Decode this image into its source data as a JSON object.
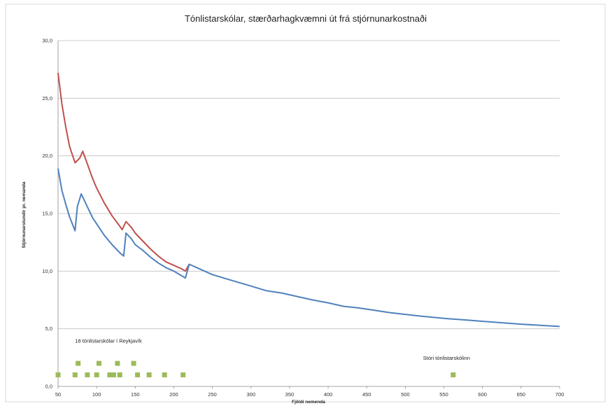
{
  "chart_data": {
    "type": "line",
    "title": "Tónlistarskólar, stærðarhagkvæmni út frá stjórnunarkostnaði",
    "xlabel": "Fjöldi nemenda",
    "ylabel": "Stjórnunarstundir pr. nemanda",
    "xlim": [
      50,
      700
    ],
    "ylim": [
      0,
      30
    ],
    "x_ticks": [
      "50",
      "100",
      "150",
      "200",
      "250",
      "300",
      "350",
      "400",
      "450",
      "500",
      "550",
      "600",
      "650",
      "700"
    ],
    "y_ticks": [
      "0,0",
      "5,0",
      "10,0",
      "15,0",
      "20,0",
      "25,0",
      "30,0"
    ],
    "grid": "horizontal",
    "series": [
      {
        "color": "#c0504d",
        "points": [
          [
            50,
            27.2
          ],
          [
            55,
            24.5
          ],
          [
            60,
            22.5
          ],
          [
            65,
            20.8
          ],
          [
            72,
            19.4
          ],
          [
            78,
            19.8
          ],
          [
            82,
            20.4
          ],
          [
            88,
            19.3
          ],
          [
            95,
            18.0
          ],
          [
            100,
            17.2
          ],
          [
            110,
            15.9
          ],
          [
            120,
            14.8
          ],
          [
            130,
            13.9
          ],
          [
            133,
            13.6
          ],
          [
            138,
            14.3
          ],
          [
            145,
            13.8
          ],
          [
            150,
            13.3
          ],
          [
            160,
            12.6
          ],
          [
            170,
            11.9
          ],
          [
            180,
            11.3
          ],
          [
            190,
            10.8
          ],
          [
            200,
            10.5
          ],
          [
            210,
            10.2
          ],
          [
            215,
            10.0
          ],
          [
            220,
            10.6
          ]
        ]
      },
      {
        "color": "#4f81bd",
        "points": [
          [
            50,
            18.9
          ],
          [
            55,
            17.0
          ],
          [
            60,
            15.8
          ],
          [
            65,
            14.7
          ],
          [
            72,
            13.5
          ],
          [
            75,
            15.6
          ],
          [
            80,
            16.7
          ],
          [
            85,
            16.0
          ],
          [
            90,
            15.3
          ],
          [
            95,
            14.6
          ],
          [
            100,
            14.1
          ],
          [
            110,
            13.1
          ],
          [
            120,
            12.3
          ],
          [
            130,
            11.6
          ],
          [
            135,
            11.3
          ],
          [
            138,
            13.3
          ],
          [
            145,
            12.8
          ],
          [
            150,
            12.3
          ],
          [
            160,
            11.8
          ],
          [
            170,
            11.2
          ],
          [
            180,
            10.7
          ],
          [
            190,
            10.3
          ],
          [
            200,
            10.0
          ],
          [
            210,
            9.6
          ],
          [
            215,
            9.4
          ],
          [
            220,
            10.6
          ],
          [
            230,
            10.3
          ],
          [
            250,
            9.7
          ],
          [
            270,
            9.3
          ],
          [
            300,
            8.7
          ],
          [
            320,
            8.3
          ],
          [
            340,
            8.1
          ],
          [
            360,
            7.8
          ],
          [
            380,
            7.5
          ],
          [
            400,
            7.25
          ],
          [
            420,
            6.95
          ],
          [
            440,
            6.8
          ],
          [
            460,
            6.6
          ],
          [
            480,
            6.4
          ],
          [
            500,
            6.25
          ],
          [
            520,
            6.1
          ],
          [
            550,
            5.9
          ],
          [
            580,
            5.75
          ],
          [
            600,
            5.65
          ],
          [
            650,
            5.4
          ],
          [
            700,
            5.2
          ]
        ]
      }
    ],
    "markers": {
      "color": "#9bbb59",
      "points": [
        [
          50,
          1
        ],
        [
          72,
          1
        ],
        [
          76,
          2
        ],
        [
          88,
          1
        ],
        [
          100,
          1
        ],
        [
          103,
          2
        ],
        [
          117,
          1
        ],
        [
          122,
          1
        ],
        [
          127,
          2
        ],
        [
          130,
          1
        ],
        [
          148,
          2
        ],
        [
          153,
          1
        ],
        [
          168,
          1
        ],
        [
          188,
          1
        ],
        [
          212,
          1
        ],
        [
          562,
          1
        ]
      ]
    },
    "annotations": [
      {
        "text": "18 tónlistarskólar í Reykjavík",
        "x": 72,
        "y": 3.8
      },
      {
        "text": "Stóri tónlistarskólinn",
        "x": 523,
        "y": 2.3
      }
    ]
  }
}
